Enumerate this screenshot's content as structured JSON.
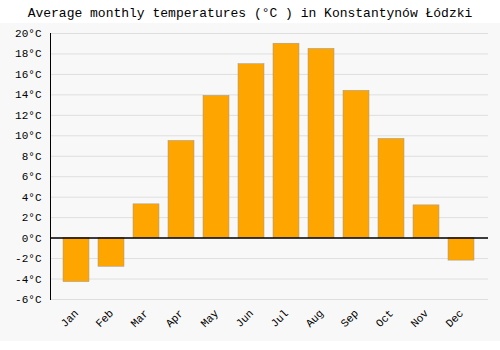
{
  "chart_data": {
    "type": "bar",
    "title": "Average monthly temperatures (°C ) in Konstantynów Łódzki",
    "categories": [
      "Jan",
      "Feb",
      "Mar",
      "Apr",
      "May",
      "Jun",
      "Jul",
      "Aug",
      "Sep",
      "Oct",
      "Nov",
      "Dec"
    ],
    "values": [
      -4.3,
      -2.8,
      3.3,
      9.5,
      13.9,
      17.0,
      19.0,
      18.5,
      14.4,
      9.7,
      3.2,
      -2.2
    ],
    "color": "#FFA500",
    "ylim": [
      -6,
      20
    ],
    "yticks": [
      {
        "value": -6,
        "label": "-6°C"
      },
      {
        "value": -4,
        "label": "-4°C"
      },
      {
        "value": -2,
        "label": "-2°C"
      },
      {
        "value": 0,
        "label": "0°C"
      },
      {
        "value": 2,
        "label": "2°C"
      },
      {
        "value": 4,
        "label": "4°C"
      },
      {
        "value": 6,
        "label": "6°C"
      },
      {
        "value": 8,
        "label": "8°C"
      },
      {
        "value": 10,
        "label": "10°C"
      },
      {
        "value": 12,
        "label": "12°C"
      },
      {
        "value": 14,
        "label": "14°C"
      },
      {
        "value": 16,
        "label": "16°C"
      },
      {
        "value": 18,
        "label": "18°C"
      },
      {
        "value": 20,
        "label": "20°C"
      }
    ],
    "grid": true
  }
}
